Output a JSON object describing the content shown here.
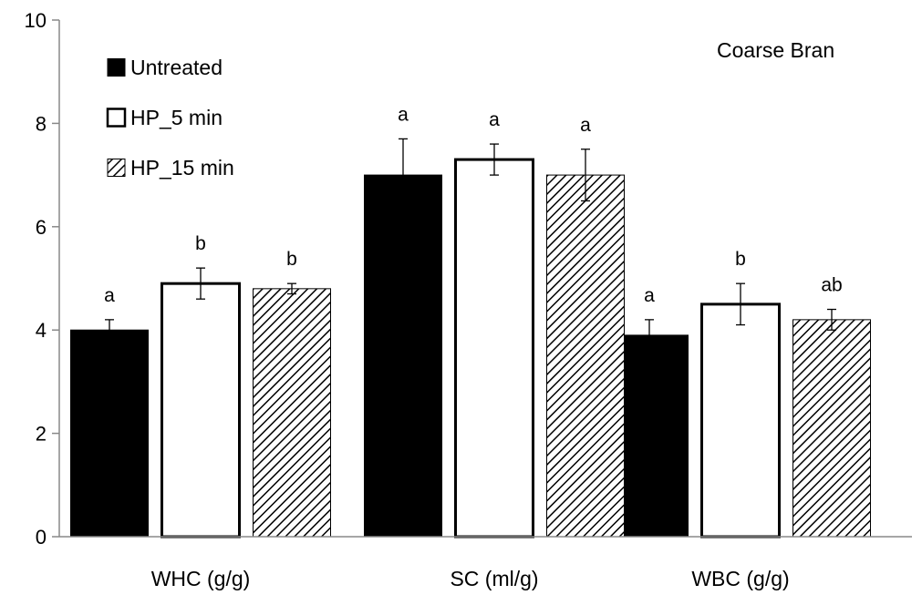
{
  "chart_data": {
    "type": "bar",
    "annotation": "Coarse Bran",
    "categories": [
      "WHC (g/g)",
      "SC (ml/g)",
      "WBC (g/g)"
    ],
    "ylim": [
      0,
      10
    ],
    "yticks": [
      "0",
      "2",
      "4",
      "6",
      "8",
      "10"
    ],
    "grid": false,
    "legend_position": "top-left",
    "series": [
      {
        "name": "Untreated",
        "fill": "solid-black",
        "values": [
          4.0,
          7.0,
          3.9
        ],
        "errors": [
          0.2,
          0.7,
          0.3
        ],
        "labels": [
          "a",
          "a",
          "a"
        ]
      },
      {
        "name": "HP_5 min",
        "fill": "white-outlined",
        "values": [
          4.9,
          7.3,
          4.5
        ],
        "errors": [
          0.3,
          0.3,
          0.4
        ],
        "labels": [
          "b",
          "a",
          "b"
        ]
      },
      {
        "name": "HP_15 min",
        "fill": "diagonal-hatch",
        "values": [
          4.8,
          7.0,
          4.2
        ],
        "errors": [
          0.1,
          0.5,
          0.2
        ],
        "labels": [
          "b",
          "a",
          "ab"
        ]
      }
    ]
  }
}
